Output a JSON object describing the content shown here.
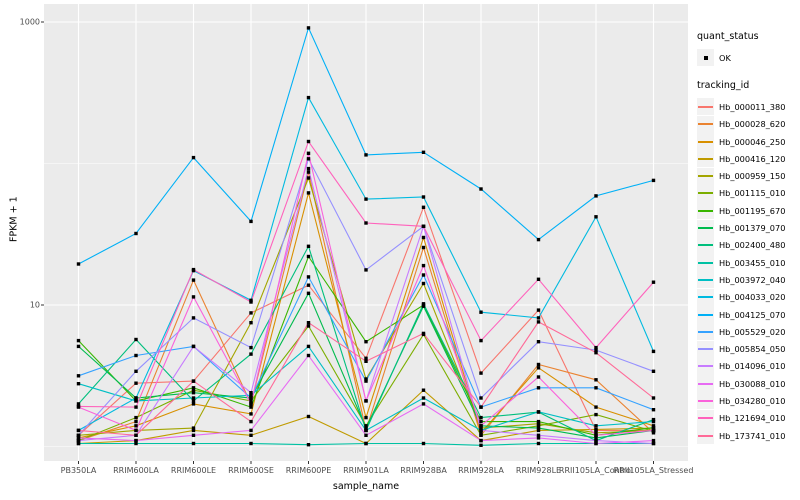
{
  "legend": {
    "quant_status_title": "quant_status",
    "quant_status_value": "OK",
    "tracking_id_title": "tracking_id"
  },
  "chart_data": {
    "type": "line",
    "title": "",
    "xlabel": "sample_name",
    "ylabel": "FPKM + 1",
    "y_scale": "log10",
    "ylim": [
      0.71,
      1280
    ],
    "grid": "on",
    "legend_position": "right",
    "panel_bg": "#EBEBEB",
    "grid_color": "#FFFFFF",
    "point_color": "#000000",
    "axis_text_color": "#4D4D4D",
    "y_ticks": [
      {
        "label": "1000",
        "value": 1000
      },
      {
        "label": "10",
        "value": 10
      }
    ],
    "y_minor_gridlines": [
      100,
      1
    ],
    "categories": [
      "PB350LA",
      "RRIM600LA",
      "RRIM600LE",
      "RRIM600SE",
      "RRIM600PE",
      "RRIM901LA",
      "RRIM928BA",
      "RRIM928LA",
      "RRIM928LE",
      "RRII105LA_Control",
      "RRII105LA_Stressed"
    ],
    "series": [
      {
        "name": "Hb_000011_380",
        "color": "#F8766D",
        "values": [
          1.2,
          2.8,
          2.9,
          8.8,
          13.8,
          4.2,
          49,
          3.3,
          9.2,
          1.3,
          1.3
        ]
      },
      {
        "name": "Hb_000028_620",
        "color": "#EA8331",
        "values": [
          1.1,
          1.5,
          15,
          2.0,
          87,
          1.3,
          25.5,
          1.2,
          3.8,
          2.96,
          1.25
        ]
      },
      {
        "name": "Hb_000046_250",
        "color": "#D89000",
        "values": [
          1.15,
          1.4,
          2.0,
          1.7,
          62,
          1.6,
          30,
          1.25,
          3.6,
          1.9,
          1.4
        ]
      },
      {
        "name": "Hb_000416_120",
        "color": "#C09B00",
        "values": [
          1.05,
          1.1,
          1.3,
          1.2,
          1.63,
          1.05,
          2.5,
          1.1,
          1.3,
          1.32,
          1.35
        ]
      },
      {
        "name": "Hb_000959_150",
        "color": "#A3A500",
        "values": [
          1.2,
          1.3,
          1.35,
          7.5,
          79,
          3.0,
          14.2,
          1.35,
          1.45,
          1.25,
          1.3
        ]
      },
      {
        "name": "Hb_001115_010",
        "color": "#7CAE00",
        "values": [
          1.1,
          1.6,
          2.5,
          2.1,
          7.1,
          1.4,
          6.2,
          1.2,
          1.4,
          1.68,
          1.28
        ]
      },
      {
        "name": "Hb_001195_670",
        "color": "#39B600",
        "values": [
          5.6,
          2.1,
          2.6,
          1.9,
          22,
          5.5,
          10,
          1.5,
          1.5,
          1.2,
          1.36
        ]
      },
      {
        "name": "Hb_001379_070",
        "color": "#00BB4E",
        "values": [
          5.1,
          2.2,
          2.4,
          2.2,
          12.1,
          1.35,
          9.8,
          1.4,
          1.35,
          1.15,
          1.3
        ]
      },
      {
        "name": "Hb_002400_480",
        "color": "#00BF7D",
        "values": [
          2.0,
          5.7,
          2.1,
          4.5,
          26,
          1.3,
          10.2,
          1.6,
          1.75,
          1.1,
          1.55
        ]
      },
      {
        "name": "Hb_003455_010",
        "color": "#00C1A3",
        "values": [
          1.05,
          1.05,
          1.05,
          1.05,
          1.03,
          1.05,
          1.05,
          1.02,
          1.05,
          1.05,
          1.05
        ]
      },
      {
        "name": "Hb_003972_040",
        "color": "#00BFC4",
        "values": [
          2.78,
          2.1,
          2.2,
          2.3,
          5.1,
          1.3,
          2.2,
          1.3,
          1.76,
          1.4,
          1.5
        ]
      },
      {
        "name": "Hb_004033_020",
        "color": "#00BAE0",
        "values": [
          1.3,
          2.2,
          17.5,
          10.8,
          292,
          56,
          58,
          8.9,
          8.1,
          42,
          4.7
        ]
      },
      {
        "name": "Hb_004125_070",
        "color": "#00B0F6",
        "values": [
          19.5,
          32,
          110,
          39,
          908,
          115,
          120,
          66,
          29,
          59,
          76
        ]
      },
      {
        "name": "Hb_005529_020",
        "color": "#35A2FF",
        "values": [
          3.16,
          4.4,
          5.1,
          2.2,
          15.8,
          2.9,
          16.3,
          1.9,
          2.6,
          2.6,
          1.82
        ]
      },
      {
        "name": "Hb_005854_050",
        "color": "#9590FF",
        "values": [
          1.2,
          3.4,
          8.1,
          5.0,
          108,
          17.7,
          36,
          2.2,
          5.5,
          4.8,
          3.4
        ]
      },
      {
        "name": "Hb_014096_010",
        "color": "#C77CFF",
        "values": [
          1.1,
          1.2,
          5.1,
          2.4,
          92,
          2.1,
          36,
          1.3,
          1.2,
          1.1,
          1.05
        ]
      },
      {
        "name": "Hb_030088_010",
        "color": "#E76BF3",
        "values": [
          1.15,
          1.1,
          1.2,
          1.3,
          4.4,
          1.2,
          2.0,
          1.1,
          1.15,
          1.05,
          1.1
        ]
      },
      {
        "name": "Hb_034280_010",
        "color": "#FA62DB",
        "values": [
          1.9,
          1.3,
          11.4,
          2.0,
          118,
          2.1,
          19,
          1.4,
          3.1,
          1.2,
          1.3
        ]
      },
      {
        "name": "Hb_121694_010",
        "color": "#FF62BC",
        "values": [
          1.92,
          1.9,
          17.8,
          10.5,
          143,
          38,
          36,
          5.6,
          15.2,
          5.0,
          14.5
        ]
      },
      {
        "name": "Hb_173741_010",
        "color": "#FF6A98",
        "values": [
          1.3,
          1.2,
          2.9,
          1.5,
          7.5,
          4.0,
          6.3,
          1.9,
          7.6,
          4.6,
          2.2
        ]
      }
    ]
  }
}
